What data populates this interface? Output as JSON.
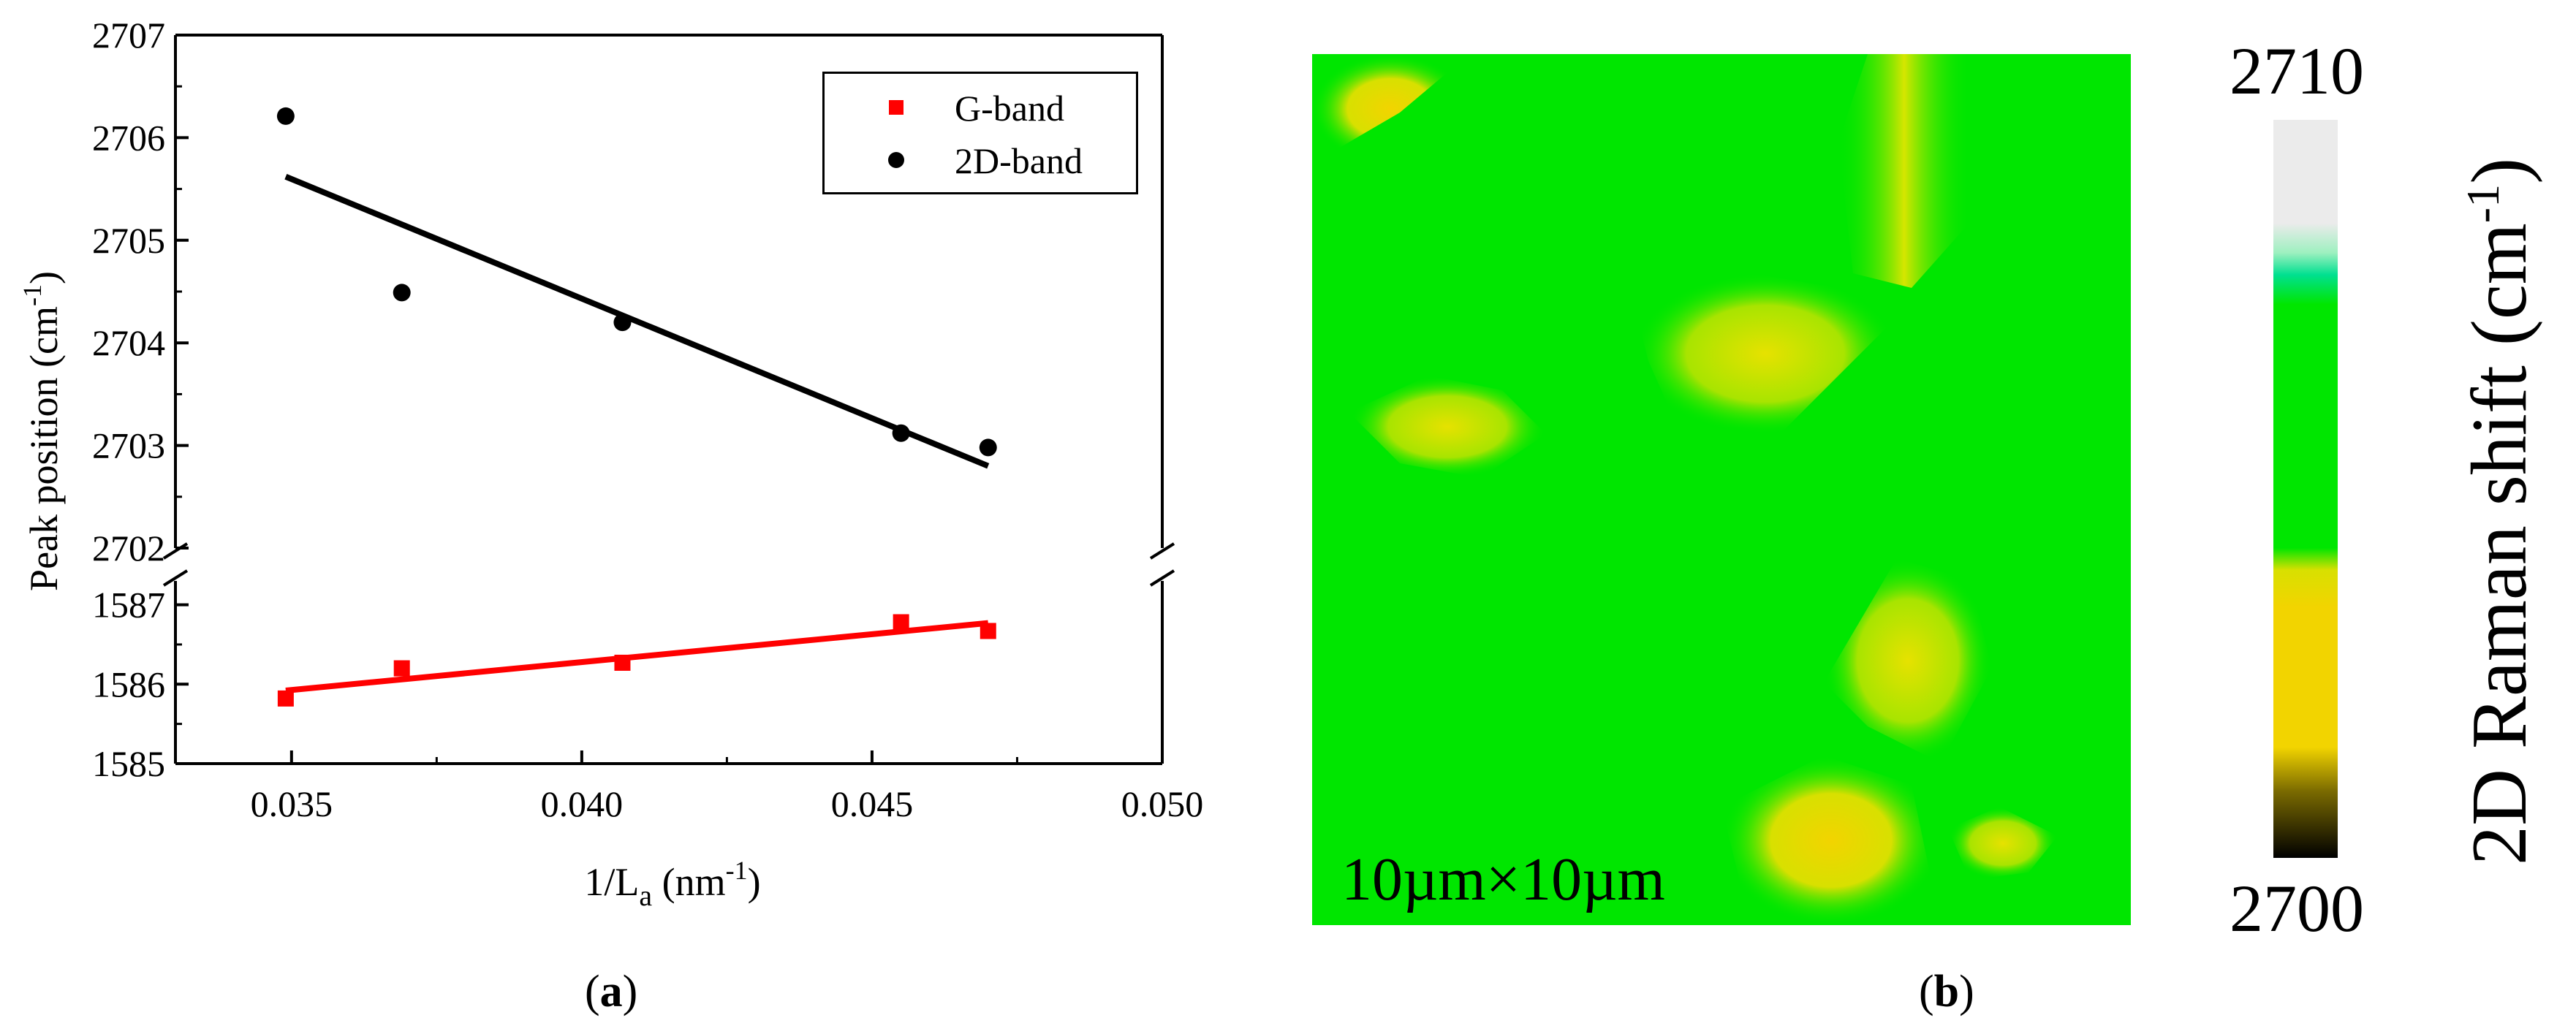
{
  "chart_data": [
    {
      "type": "scatter",
      "panel": "(a)",
      "xlabel": "1/L",
      "xlabel_sub": "a",
      "xlabel_unit": " (nm",
      "xlabel_unit_sup": "-1",
      "xlabel_close": ")",
      "ylabel": "Peak position (cm",
      "ylabel_sup": "-1",
      "ylabel_close": ")",
      "xlim": [
        0.033,
        0.05
      ],
      "x_ticks": [
        "0.035",
        "0.040",
        "0.045",
        "0.050"
      ],
      "x_tick_values": [
        0.035,
        0.04,
        0.045,
        0.05
      ],
      "y_upper": {
        "ylim": [
          2702,
          2707
        ],
        "ticks": [
          "2702",
          "2703",
          "2704",
          "2705",
          "2706",
          "2707"
        ],
        "tick_values": [
          2702,
          2703,
          2704,
          2705,
          2706,
          2707
        ]
      },
      "y_lower": {
        "ylim": [
          1585,
          1587.3
        ],
        "ticks": [
          "1585",
          "1586",
          "1587"
        ],
        "tick_values": [
          1585,
          1586,
          1587
        ]
      },
      "axis_break": true,
      "legend_position": "top-right",
      "series": [
        {
          "name": "G-band",
          "marker": "square",
          "color": "#ff0000",
          "axis": "lower",
          "x": [
            0.0349,
            0.0369,
            0.0407,
            0.0455,
            0.047
          ],
          "y": [
            1585.82,
            1586.2,
            1586.27,
            1586.78,
            1586.67
          ],
          "fit": {
            "x": [
              0.0349,
              0.047
            ],
            "y": [
              1585.92,
              1586.77
            ]
          }
        },
        {
          "name": "2D-band",
          "marker": "circle",
          "color": "#000000",
          "axis": "upper",
          "x": [
            0.0349,
            0.0369,
            0.0407,
            0.0455,
            0.047
          ],
          "y": [
            2706.21,
            2704.49,
            2704.2,
            2703.12,
            2702.98
          ],
          "fit": {
            "x": [
              0.0349,
              0.047
            ],
            "y": [
              2705.62,
              2702.8
            ]
          }
        }
      ]
    },
    {
      "type": "heatmap",
      "panel": "(b)",
      "map_label": "10µm×10µm",
      "colorbar_title": "2D Raman shift (cm",
      "colorbar_title_sup": "-1",
      "colorbar_title_close": ")",
      "colorbar_range": [
        2700,
        2710
      ],
      "colorbar_max_label": "2710",
      "colorbar_min_label": "2700",
      "colors": {
        "background": "#00e600",
        "hot": "#f2d400",
        "high": "#eeeeee",
        "low": "#000000"
      }
    }
  ],
  "captions": {
    "a_open": "(",
    "a_letter": "a",
    "a_close": ")",
    "b_open": "(",
    "b_letter": "b",
    "b_close": ")"
  }
}
